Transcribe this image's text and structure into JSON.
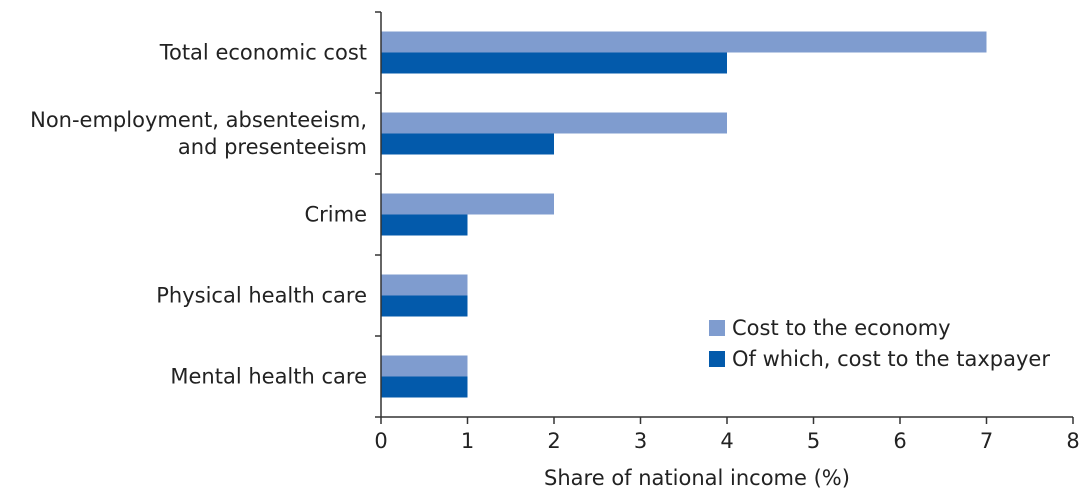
{
  "chart_data": {
    "type": "bar",
    "orientation": "horizontal",
    "title": "",
    "xlabel": "Share of national income (%)",
    "ylabel": "",
    "xlim": [
      0,
      8
    ],
    "x_ticks": [
      "0",
      "1",
      "2",
      "3",
      "4",
      "5",
      "6",
      "7",
      "8"
    ],
    "grid": false,
    "legend_position": "bottom-right",
    "categories": [
      "Total economic cost",
      "Non-employment, absenteeism,|and presenteeism",
      "Crime",
      "Physical health care",
      "Mental health care"
    ],
    "series": [
      {
        "name": "Cost to the economy",
        "color": "#7f9ccf",
        "values": [
          7,
          4,
          2,
          1,
          1
        ]
      },
      {
        "name": "Of which, cost to the taxpayer",
        "color": "#035aab",
        "values": [
          4,
          2,
          1,
          1,
          1
        ]
      }
    ]
  }
}
